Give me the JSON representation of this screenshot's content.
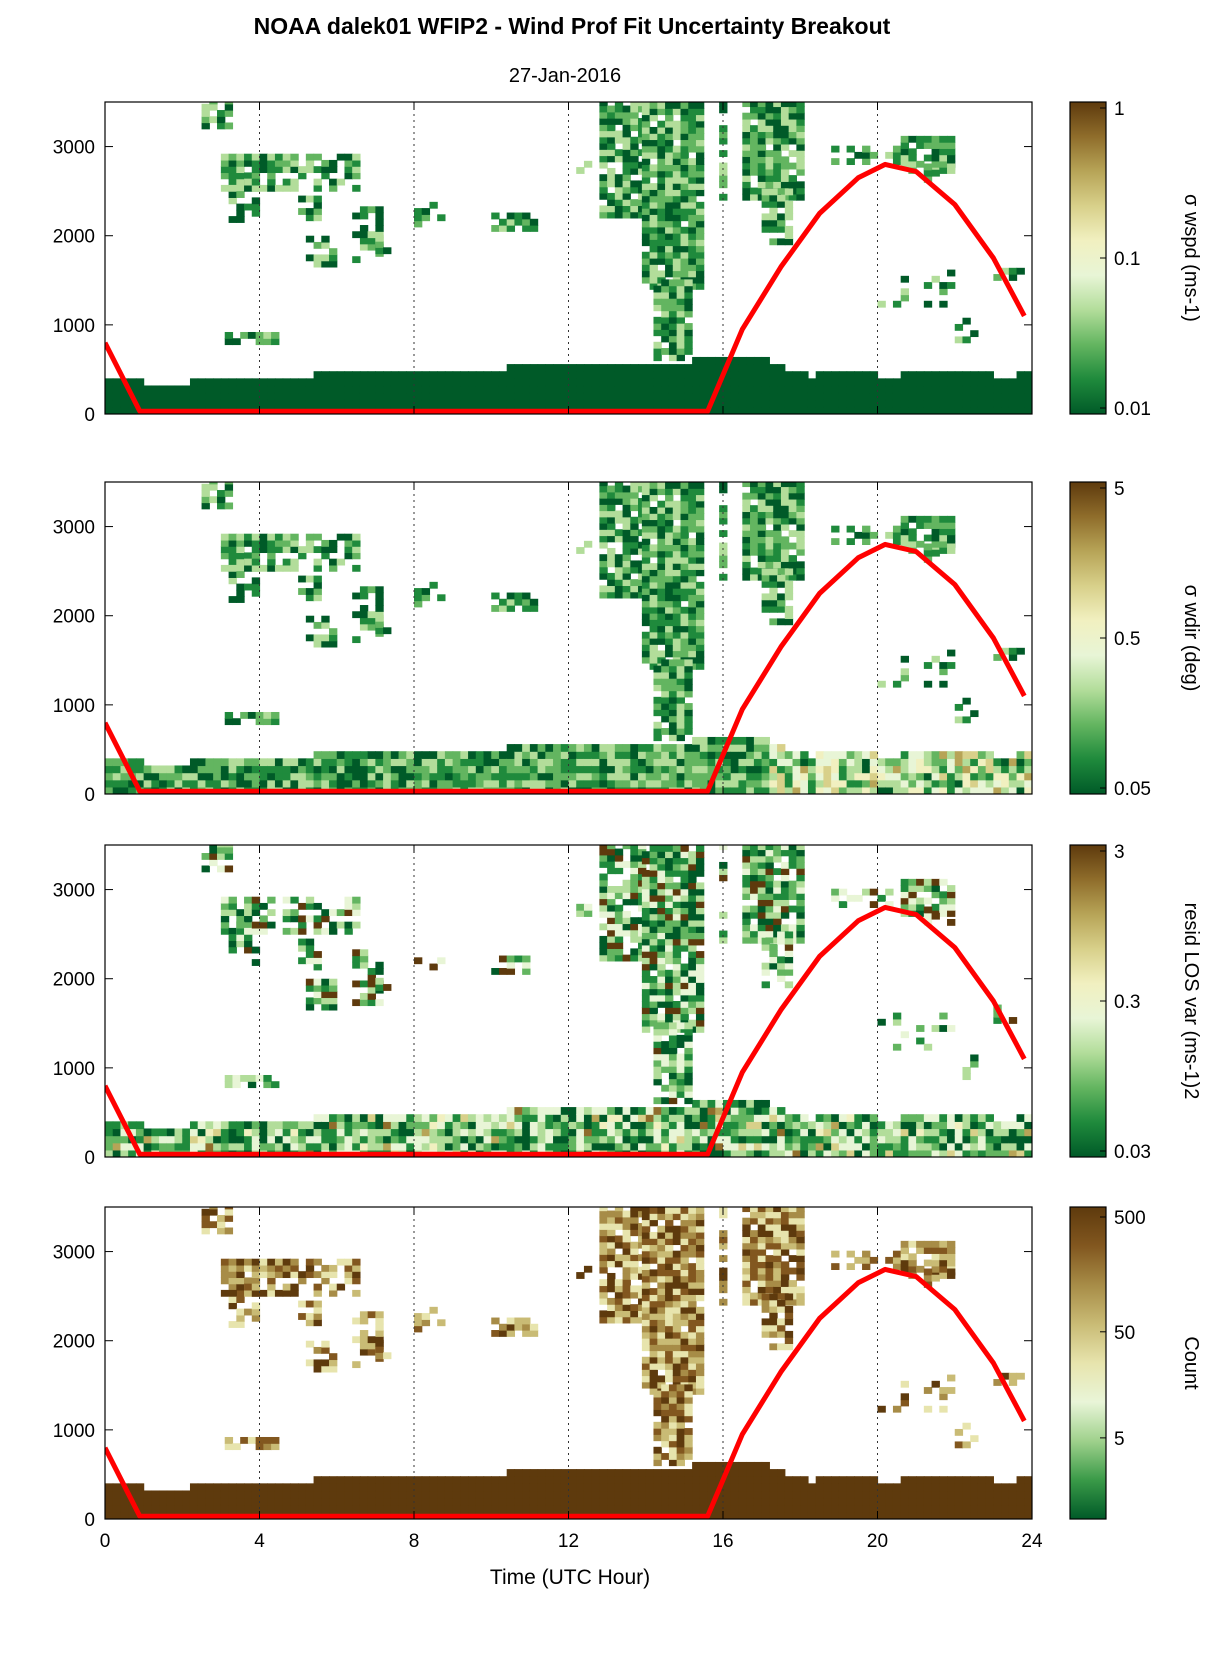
{
  "title": "NOAA dalek01 WFIP2 - Wind Prof Fit Uncertainty Breakout",
  "subtitle": "27-Jan-2016",
  "chart_data": [
    {
      "type": "heatmap",
      "colorbar_label": "σ wspd (ms<sup>-1</sup>)",
      "colorbar_label_text": "σ wspd (ms-1)",
      "colorbar_scale": "log",
      "colorbar_ticks": [
        "1",
        "0.1",
        "0.01"
      ],
      "clim": [
        0.01,
        1
      ],
      "xlim": [
        0,
        24
      ],
      "ylim": [
        0,
        3500
      ],
      "y_ticks": [
        "0",
        "1000",
        "2000",
        "3000"
      ],
      "x_ticks": [
        "0",
        "4",
        "8",
        "12",
        "16",
        "20",
        "24"
      ],
      "dotted_grid_x": [
        4,
        8,
        12,
        16,
        20
      ],
      "overlay_curve_color": "#ff0000"
    },
    {
      "type": "heatmap",
      "colorbar_label_text": "σ wdir (deg)",
      "colorbar_scale": "log",
      "colorbar_ticks": [
        "5",
        "0.5",
        "0.05"
      ],
      "clim": [
        0.05,
        5
      ],
      "xlim": [
        0,
        24
      ],
      "ylim": [
        0,
        3500
      ],
      "y_ticks": [
        "0",
        "1000",
        "2000",
        "3000"
      ],
      "x_ticks": [
        "0",
        "4",
        "8",
        "12",
        "16",
        "20",
        "24"
      ],
      "dotted_grid_x": [
        4,
        8,
        12,
        16,
        20
      ],
      "overlay_curve_color": "#ff0000"
    },
    {
      "type": "heatmap",
      "colorbar_label_text": "resid LOS var (ms-1)2",
      "colorbar_scale": "log",
      "colorbar_ticks": [
        "3",
        "0.3",
        "0.03"
      ],
      "clim": [
        0.03,
        3
      ],
      "xlim": [
        0,
        24
      ],
      "ylim": [
        0,
        3500
      ],
      "y_ticks": [
        "0",
        "1000",
        "2000",
        "3000"
      ],
      "x_ticks": [
        "0",
        "4",
        "8",
        "12",
        "16",
        "20",
        "24"
      ],
      "dotted_grid_x": [
        4,
        8,
        12,
        16,
        20
      ],
      "overlay_curve_color": "#ff0000"
    },
    {
      "type": "heatmap",
      "colorbar_label_text": "Count",
      "colorbar_scale": "log",
      "colorbar_ticks": [
        "500",
        "50",
        "5"
      ],
      "clim": [
        1,
        500
      ],
      "xlim": [
        0,
        24
      ],
      "ylim": [
        0,
        3500
      ],
      "y_ticks": [
        "0",
        "1000",
        "2000",
        "3000"
      ],
      "x_ticks": [
        "0",
        "4",
        "8",
        "12",
        "16",
        "20",
        "24"
      ],
      "xlabel": "Time (UTC Hour)",
      "dotted_grid_x": [
        4,
        8,
        12,
        16,
        20
      ],
      "overlay_curve_color": "#ff0000"
    }
  ],
  "overlay_curve": {
    "x": [
      0,
      0.9,
      15.6,
      16.5,
      17.5,
      18.5,
      19.5,
      20.2,
      21,
      22,
      23,
      23.8
    ],
    "y": [
      800,
      30,
      30,
      950,
      1650,
      2250,
      2650,
      2800,
      2720,
      2350,
      1750,
      1100
    ]
  },
  "colormap": [
    "#005a28",
    "#1f8a3c",
    "#63b560",
    "#b2dd9a",
    "#e8f5d6",
    "#f1f0c0",
    "#d8d08a",
    "#b7a457",
    "#8f6d2b",
    "#5e3a0d"
  ],
  "colormap_count": [
    "#005a28",
    "#3a9a48",
    "#9fd18c",
    "#e9f5d8",
    "#e7e4ad",
    "#c9bb75",
    "#a78c47",
    "#82571f",
    "#5e3a0d"
  ]
}
